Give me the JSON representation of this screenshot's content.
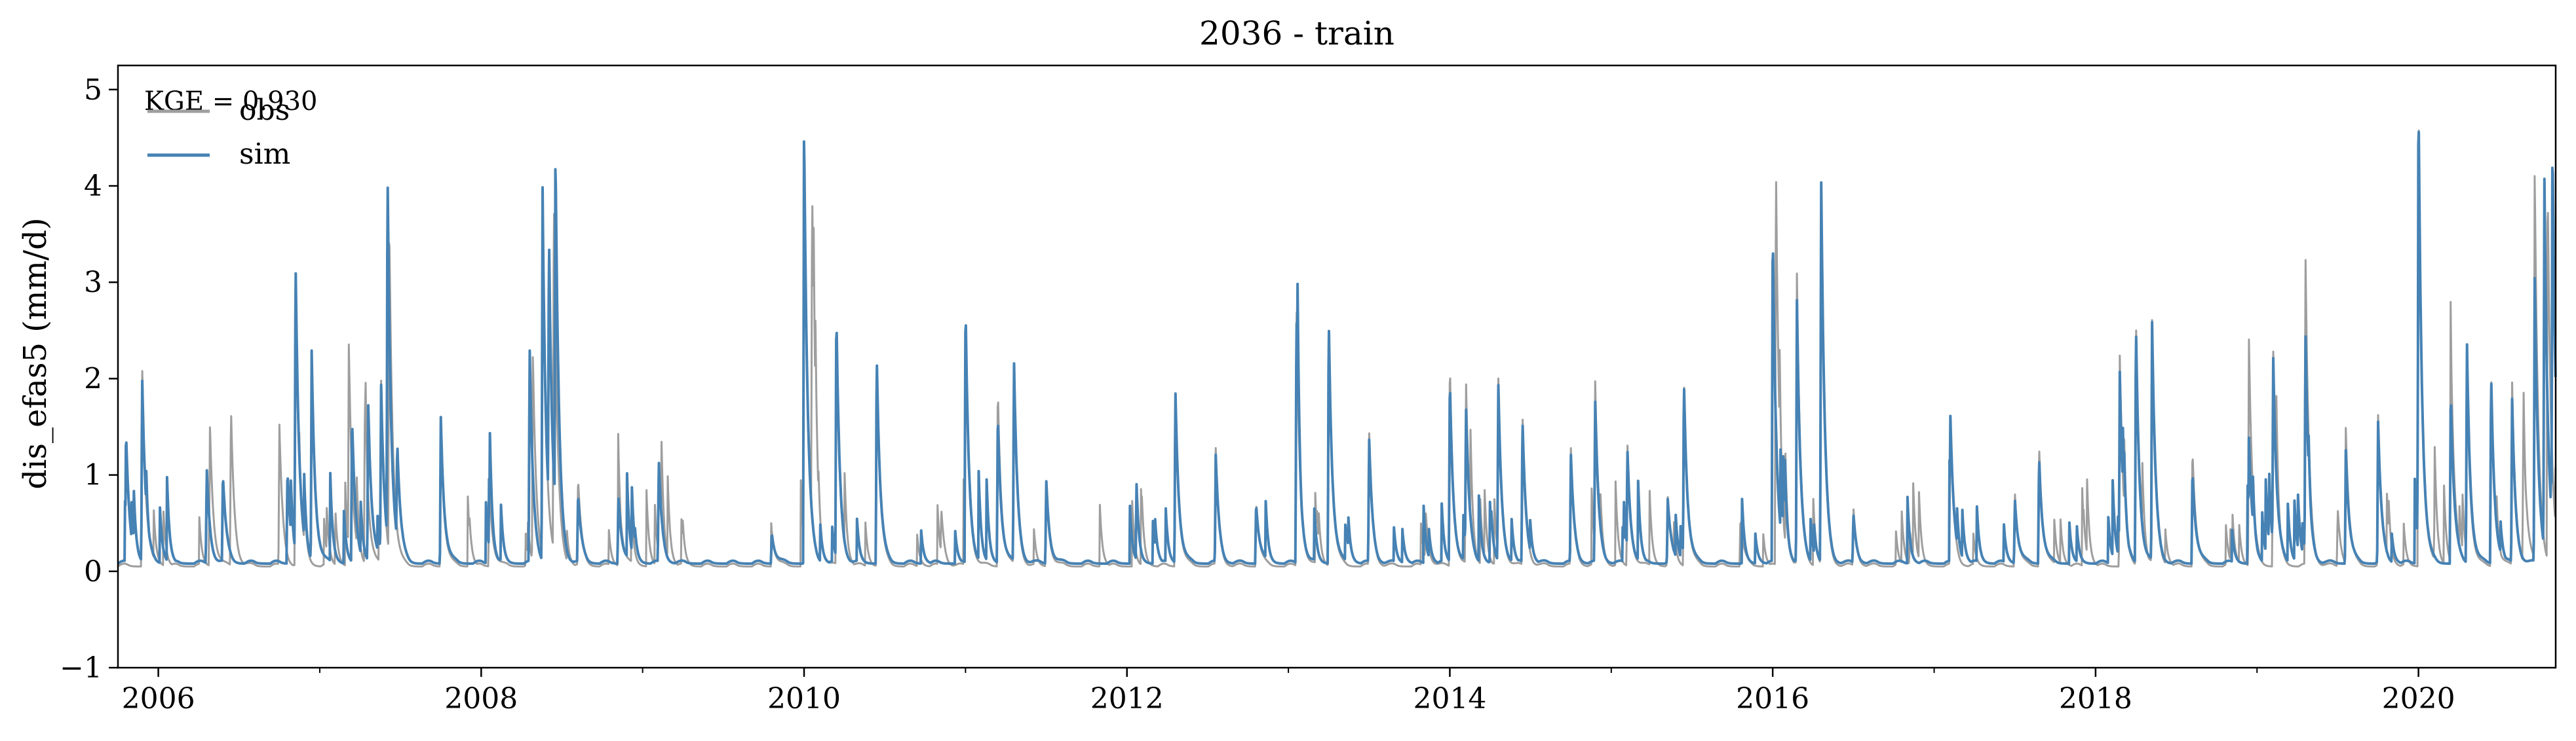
{
  "chart_data": {
    "type": "line",
    "title": "2036 - train",
    "ylabel": "dis_efas5 (mm/d)",
    "xlabel": "",
    "annotation": "KGE = 0.930",
    "xlim": [
      2005.75,
      2020.85
    ],
    "ylim": [
      -1,
      5.25
    ],
    "x_ticks": [
      2006,
      2008,
      2010,
      2012,
      2014,
      2016,
      2018,
      2020
    ],
    "x_tick_labels": [
      "2006",
      "2008",
      "2010",
      "2012",
      "2014",
      "2016",
      "2018",
      "2020"
    ],
    "y_ticks": [
      -1,
      0,
      1,
      2,
      3,
      4,
      5
    ],
    "y_tick_labels": [
      "−1",
      "0",
      "1",
      "2",
      "3",
      "4",
      "5"
    ],
    "grid": false,
    "legend": {
      "placement": "top-left",
      "entries": [
        "obs",
        "sim"
      ]
    },
    "series": [
      {
        "name": "obs",
        "color": "#9e9e9e",
        "baseline": 0.05,
        "peaks": [
          [
            2005.9,
            2.1
          ],
          [
            2006.32,
            1.5
          ],
          [
            2006.45,
            1.65
          ],
          [
            2006.75,
            1.45
          ],
          [
            2006.85,
            3.0
          ],
          [
            2007.18,
            2.3
          ],
          [
            2007.28,
            1.85
          ],
          [
            2007.38,
            1.9
          ],
          [
            2007.43,
            3.5
          ],
          [
            2007.75,
            1.5
          ],
          [
            2008.05,
            0.9
          ],
          [
            2008.32,
            2.2
          ],
          [
            2008.38,
            3.8
          ],
          [
            2008.45,
            3.7
          ],
          [
            2008.6,
            0.9
          ],
          [
            2008.85,
            1.0
          ],
          [
            2009.1,
            1.0
          ],
          [
            2009.8,
            0.4
          ],
          [
            2010.0,
            4.45
          ],
          [
            2010.05,
            3.5
          ],
          [
            2010.2,
            2.5
          ],
          [
            2010.45,
            2.15
          ],
          [
            2010.85,
            0.6
          ],
          [
            2011.0,
            2.7
          ],
          [
            2011.2,
            1.9
          ],
          [
            2011.3,
            2.05
          ],
          [
            2011.5,
            0.9
          ],
          [
            2012.3,
            1.85
          ],
          [
            2012.55,
            1.2
          ],
          [
            2012.8,
            0.7
          ],
          [
            2013.05,
            2.8
          ],
          [
            2013.25,
            2.6
          ],
          [
            2013.5,
            1.4
          ],
          [
            2013.85,
            0.6
          ],
          [
            2014.0,
            2.15
          ],
          [
            2014.1,
            1.9
          ],
          [
            2014.3,
            2.0
          ],
          [
            2014.45,
            1.6
          ],
          [
            2014.75,
            1.2
          ],
          [
            2014.9,
            1.95
          ],
          [
            2015.1,
            1.3
          ],
          [
            2015.35,
            0.7
          ],
          [
            2015.45,
            2.0
          ],
          [
            2015.8,
            0.5
          ],
          [
            2016.02,
            4.2
          ],
          [
            2016.15,
            3.0
          ],
          [
            2016.3,
            4.0
          ],
          [
            2016.5,
            0.6
          ],
          [
            2016.85,
            0.4
          ],
          [
            2017.1,
            1.5
          ],
          [
            2017.5,
            0.8
          ],
          [
            2017.65,
            1.3
          ],
          [
            2018.15,
            2.2
          ],
          [
            2018.25,
            2.6
          ],
          [
            2018.35,
            2.5
          ],
          [
            2018.6,
            1.25
          ],
          [
            2018.95,
            2.35
          ],
          [
            2019.1,
            2.3
          ],
          [
            2019.3,
            3.25
          ],
          [
            2019.5,
            0.6
          ],
          [
            2019.55,
            1.4
          ],
          [
            2019.75,
            1.55
          ],
          [
            2020.0,
            5.0
          ],
          [
            2020.1,
            0.5
          ],
          [
            2020.2,
            2.45
          ],
          [
            2020.3,
            2.15
          ],
          [
            2020.45,
            2.05
          ],
          [
            2020.58,
            1.9
          ],
          [
            2020.65,
            1.5
          ],
          [
            2020.72,
            4.05
          ],
          [
            2020.8,
            3.95
          ]
        ]
      },
      {
        "name": "sim",
        "color": "#4682b4",
        "baseline": 0.08,
        "peaks": [
          [
            2005.8,
            1.35
          ],
          [
            2005.9,
            1.95
          ],
          [
            2006.3,
            1.0
          ],
          [
            2006.4,
            0.9
          ],
          [
            2006.8,
            1.0
          ],
          [
            2006.85,
            3.1
          ],
          [
            2006.95,
            2.2
          ],
          [
            2007.2,
            1.5
          ],
          [
            2007.3,
            1.7
          ],
          [
            2007.38,
            1.8
          ],
          [
            2007.42,
            3.85
          ],
          [
            2007.48,
            1.0
          ],
          [
            2007.75,
            1.55
          ],
          [
            2008.05,
            0.6
          ],
          [
            2008.3,
            2.25
          ],
          [
            2008.38,
            3.9
          ],
          [
            2008.42,
            2.8
          ],
          [
            2008.46,
            3.75
          ],
          [
            2008.6,
            0.7
          ],
          [
            2008.85,
            0.75
          ],
          [
            2009.1,
            1.05
          ],
          [
            2009.8,
            0.35
          ],
          [
            2010.0,
            4.55
          ],
          [
            2010.2,
            2.6
          ],
          [
            2010.45,
            2.2
          ],
          [
            2011.0,
            2.7
          ],
          [
            2011.2,
            1.6
          ],
          [
            2011.3,
            2.1
          ],
          [
            2011.5,
            0.9
          ],
          [
            2012.3,
            1.85
          ],
          [
            2012.55,
            1.1
          ],
          [
            2012.8,
            0.65
          ],
          [
            2013.05,
            2.65
          ],
          [
            2013.25,
            2.6
          ],
          [
            2013.5,
            1.3
          ],
          [
            2014.0,
            1.95
          ],
          [
            2014.1,
            1.6
          ],
          [
            2014.3,
            1.9
          ],
          [
            2014.45,
            1.5
          ],
          [
            2014.75,
            1.1
          ],
          [
            2014.9,
            1.7
          ],
          [
            2015.1,
            1.2
          ],
          [
            2015.35,
            0.65
          ],
          [
            2015.45,
            1.95
          ],
          [
            2016.0,
            3.5
          ],
          [
            2016.15,
            2.7
          ],
          [
            2016.3,
            4.05
          ],
          [
            2016.5,
            0.5
          ],
          [
            2017.1,
            1.55
          ],
          [
            2017.5,
            0.7
          ],
          [
            2017.65,
            1.15
          ],
          [
            2018.15,
            2.0
          ],
          [
            2018.25,
            2.5
          ],
          [
            2018.35,
            2.45
          ],
          [
            2018.6,
            1.0
          ],
          [
            2018.95,
            1.3
          ],
          [
            2019.1,
            2.2
          ],
          [
            2019.3,
            2.4
          ],
          [
            2019.55,
            1.2
          ],
          [
            2019.75,
            1.45
          ],
          [
            2020.0,
            4.95
          ],
          [
            2020.2,
            1.8
          ],
          [
            2020.3,
            2.35
          ],
          [
            2020.45,
            2.0
          ],
          [
            2020.58,
            1.7
          ],
          [
            2020.72,
            3.0
          ],
          [
            2020.78,
            3.85
          ],
          [
            2020.83,
            4.05
          ]
        ]
      }
    ]
  }
}
